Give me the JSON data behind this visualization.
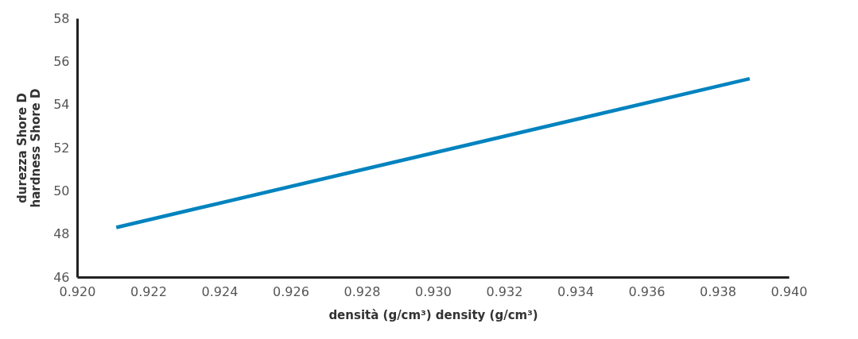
{
  "chart_data": {
    "type": "line",
    "xlabel": "densità (g/cm³)  density (g/cm³)",
    "ylabel": "durezza Shore D\nhardness Shore D",
    "series": [
      {
        "color": "#0083bf",
        "x": [
          0.9211,
          0.9389
        ],
        "values": [
          48.3,
          55.2
        ]
      }
    ],
    "xlim": [
      0.92,
      0.94
    ],
    "xticks": [
      {
        "value": 0.92,
        "label": "0.920"
      },
      {
        "value": 0.922,
        "label": "0.922"
      },
      {
        "value": 0.924,
        "label": "0.924"
      },
      {
        "value": 0.926,
        "label": "0.926"
      },
      {
        "value": 0.928,
        "label": "0.928"
      },
      {
        "value": 0.93,
        "label": "0.930"
      },
      {
        "value": 0.932,
        "label": "0.932"
      },
      {
        "value": 0.934,
        "label": "0.934"
      },
      {
        "value": 0.936,
        "label": "0.936"
      },
      {
        "value": 0.938,
        "label": "0.938"
      },
      {
        "value": 0.94,
        "label": "0.940"
      }
    ],
    "ylim": [
      46,
      58
    ],
    "yticks": [
      46,
      48,
      50,
      52,
      54,
      56,
      58
    ],
    "grid": false,
    "legend": false,
    "marker": "none",
    "line_style": "solid"
  }
}
